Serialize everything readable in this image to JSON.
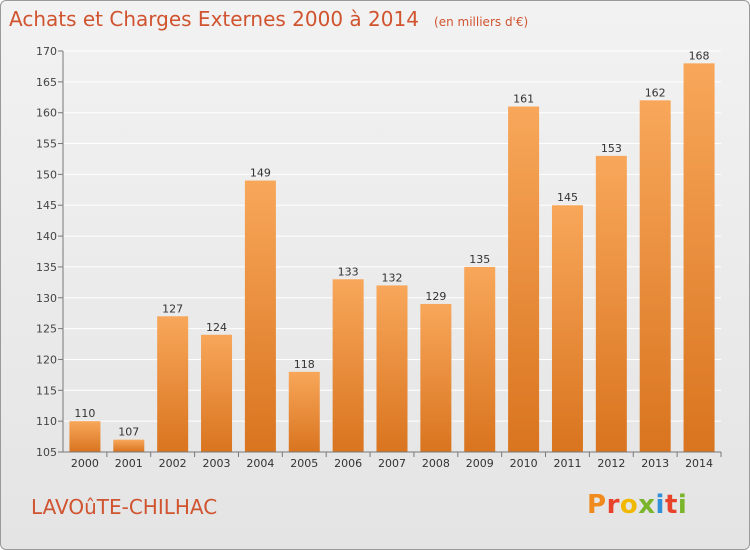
{
  "header": {
    "title": "Achats et Charges Externes 2000 à 2014",
    "unit": "(en milliers d'€)"
  },
  "footer": {
    "commune": "LAVOûTE-CHILHAC",
    "logo_letters": [
      "P",
      "r",
      "o",
      "x",
      "i",
      "t",
      "i"
    ],
    "logo_colors": [
      "#f08a1c",
      "#e8432a",
      "#f0b800",
      "#7ab52b",
      "#2f8fd8",
      "#e8432a",
      "#7ab52b"
    ]
  },
  "colors": {
    "title": "#d0542f",
    "bar_light": "#f8a75a",
    "bar_dark": "#d9741f",
    "grid": "#ffffff",
    "axis": "#777777"
  },
  "chart_data": {
    "type": "bar",
    "categories": [
      "2000",
      "2001",
      "2002",
      "2003",
      "2004",
      "2005",
      "2006",
      "2007",
      "2008",
      "2009",
      "2010",
      "2011",
      "2012",
      "2013",
      "2014"
    ],
    "values": [
      110,
      107,
      127,
      124,
      149,
      118,
      133,
      132,
      129,
      135,
      161,
      145,
      153,
      162,
      168
    ],
    "title": "Achats et Charges Externes 2000 à 2014",
    "ylim": [
      105,
      170
    ],
    "yticks": [
      105,
      110,
      115,
      120,
      125,
      130,
      135,
      140,
      145,
      150,
      155,
      160,
      165,
      170
    ],
    "grid": true,
    "data_labels": true
  }
}
